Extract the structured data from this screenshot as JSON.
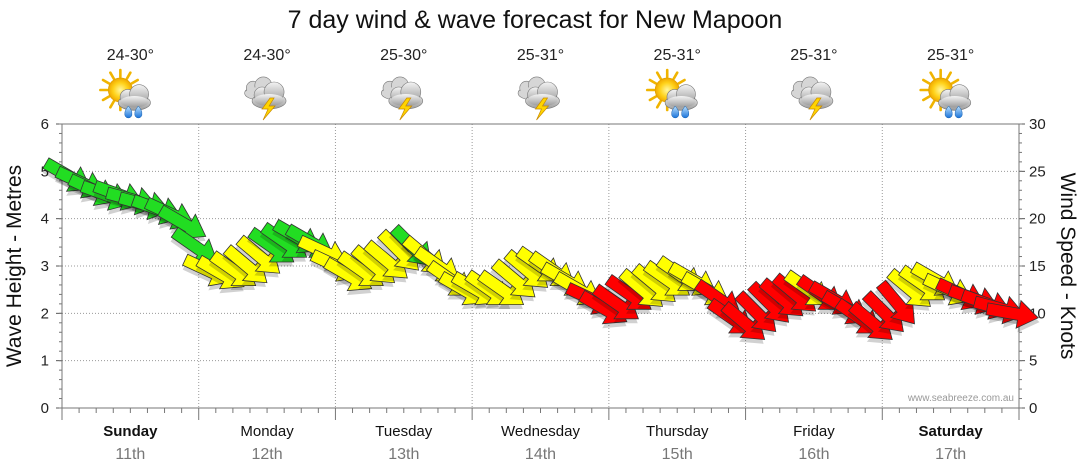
{
  "chart_data": {
    "type": "line",
    "title": "7 day wind & wave forecast for New Mapoon",
    "ylabel_left": "Wave Height - Metres",
    "ylabel_right": "Wind Speed - Knots",
    "ylim_left": [
      0,
      6
    ],
    "ylim_right": [
      0,
      30
    ],
    "yticks_left": [
      "0",
      "1",
      "2",
      "3",
      "4",
      "5",
      "6"
    ],
    "yticks_right": [
      "0",
      "5",
      "10",
      "15",
      "20",
      "25",
      "30"
    ],
    "watermark": "www.seabreeze.com.au",
    "days": [
      {
        "name": "Sunday",
        "date": "11th",
        "temp": "24-30°",
        "weather": "sun-cloud-rain",
        "bold": true
      },
      {
        "name": "Monday",
        "date": "12th",
        "temp": "24-30°",
        "weather": "storm",
        "bold": false
      },
      {
        "name": "Tuesday",
        "date": "13th",
        "temp": "25-30°",
        "weather": "storm",
        "bold": false
      },
      {
        "name": "Wednesday",
        "date": "14th",
        "temp": "25-31°",
        "weather": "storm",
        "bold": false
      },
      {
        "name": "Thursday",
        "date": "15th",
        "temp": "25-31°",
        "weather": "sun-cloud-rain",
        "bold": false
      },
      {
        "name": "Friday",
        "date": "16th",
        "temp": "25-31°",
        "weather": "storm",
        "bold": false
      },
      {
        "name": "Saturday",
        "date": "17th",
        "temp": "25-31°",
        "weather": "sun-cloud-rain",
        "bold": true
      }
    ],
    "wind_knots": [
      24.5,
      23.8,
      23.0,
      22.5,
      22.5,
      22.0,
      21.5,
      21.0,
      20.5,
      19.5,
      17.0,
      14.5,
      14.2,
      14.5,
      15.0,
      16.0,
      17.0,
      17.5,
      18.0,
      17.5,
      16.5,
      15.0,
      14.0,
      14.5,
      15.0,
      15.5,
      16.5,
      17.0,
      16.0,
      15.0,
      13.5,
      12.5,
      12.5,
      12.5,
      12.5,
      13.5,
      14.5,
      15.0,
      14.5,
      13.5,
      12.5,
      11.5,
      10.5,
      11.0,
      12.0,
      12.5,
      13.0,
      13.5,
      14.0,
      13.5,
      12.5,
      11.5,
      9.5,
      9.0,
      10.0,
      11.0,
      11.5,
      12.0,
      12.5,
      12.0,
      11.5,
      10.5,
      9.5,
      9.0,
      10.0,
      11.0,
      12.5,
      13.0,
      13.5,
      12.5,
      12.0,
      11.5,
      11.0,
      10.5,
      10.0
    ],
    "wind_dir_deg": [
      30,
      25,
      25,
      20,
      20,
      15,
      15,
      20,
      25,
      30,
      35,
      25,
      30,
      35,
      40,
      40,
      35,
      35,
      30,
      30,
      25,
      25,
      30,
      35,
      40,
      40,
      45,
      45,
      40,
      35,
      35,
      30,
      30,
      35,
      35,
      40,
      40,
      35,
      35,
      30,
      30,
      25,
      30,
      35,
      35,
      40,
      40,
      35,
      35,
      30,
      30,
      35,
      35,
      40,
      45,
      45,
      40,
      40,
      35,
      35,
      30,
      30,
      35,
      40,
      45,
      50,
      40,
      35,
      30,
      25,
      25,
      20,
      20,
      15,
      10
    ],
    "color_thresholds_knots": {
      "green_min": 17,
      "yellow_min": 12.5
    },
    "colors": {
      "green": "#22dd22",
      "yellow": "#ffff00",
      "red": "#ff0000",
      "grid": "#999999",
      "text": "#111111"
    }
  }
}
